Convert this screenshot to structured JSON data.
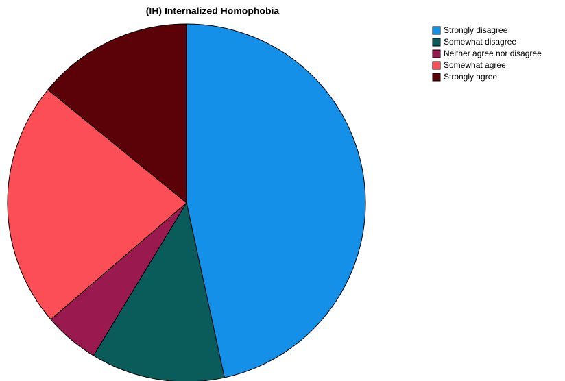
{
  "chart_data": {
    "type": "pie",
    "title": "(IH) Internalized Homophobia",
    "categories": [
      "Strongly disagree",
      "Somewhat disagree",
      "Neither agree nor disagree",
      "Somewhat agree",
      "Strongly agree"
    ],
    "values": [
      46.6,
      12.1,
      5.0,
      22.2,
      14.1
    ],
    "colors": [
      "#1490e8",
      "#0a5c5a",
      "#9a1a50",
      "#fc4e57",
      "#5a0208"
    ]
  }
}
